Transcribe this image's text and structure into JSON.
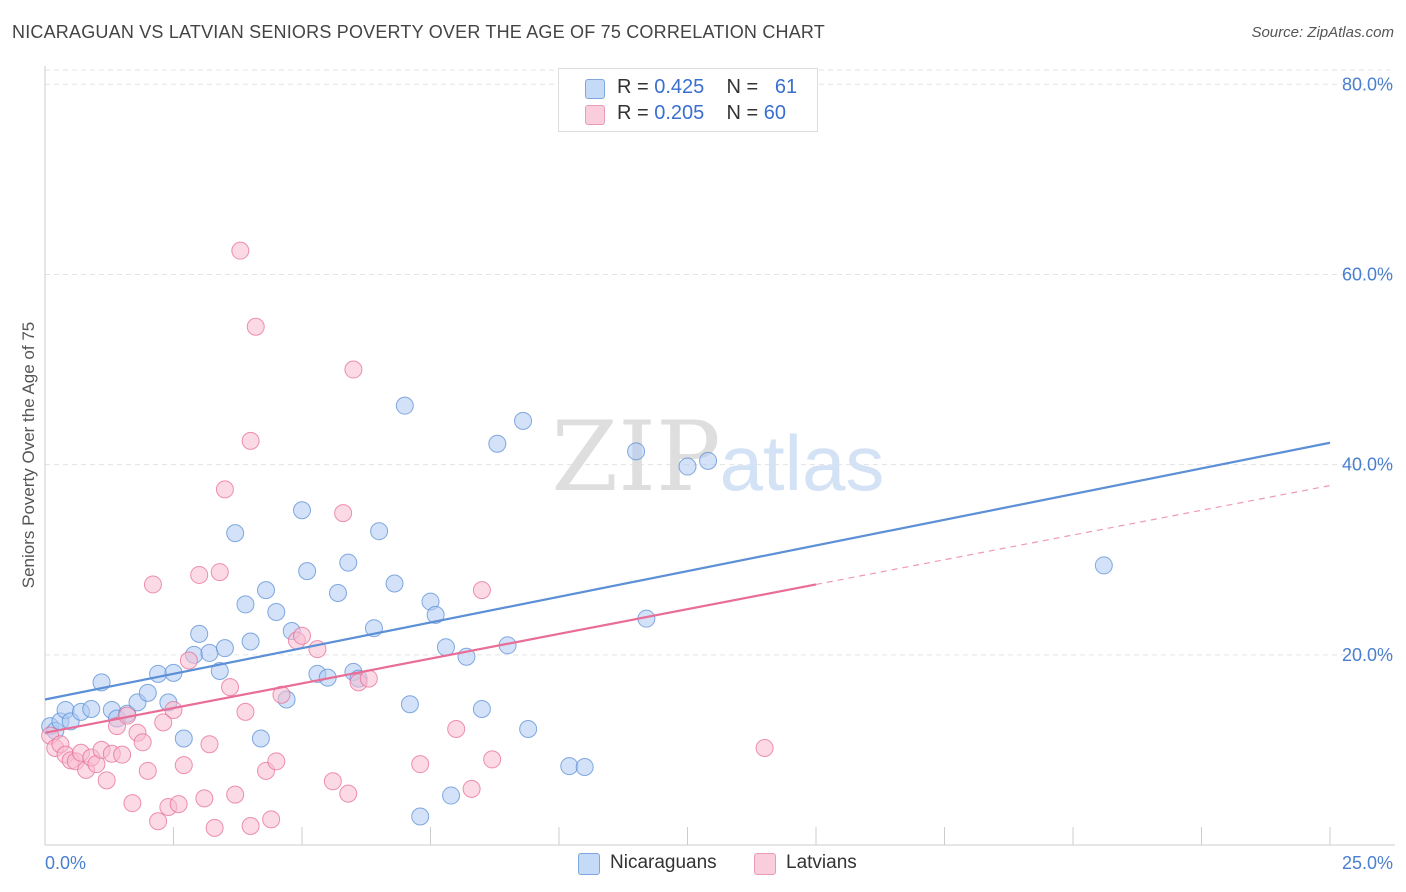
{
  "title": "NICARAGUAN VS LATVIAN SENIORS POVERTY OVER THE AGE OF 75 CORRELATION CHART",
  "source": "Source: ZipAtlas.com",
  "watermark": {
    "zip": "ZIP",
    "atlas": "atlas"
  },
  "legend": {
    "rows": [
      {
        "r_label": "R =",
        "r_value": "0.425",
        "n_label": "N =",
        "n_value": "61",
        "color": "#aecbf2"
      },
      {
        "r_label": "R =",
        "r_value": "0.205",
        "n_label": "N =",
        "n_value": "60",
        "color": "#f7bcd0"
      }
    ]
  },
  "bottom_legend": [
    {
      "label": "Nicaraguans",
      "color": "#aecbf2"
    },
    {
      "label": "Latvians",
      "color": "#f7bcd0"
    }
  ],
  "chart_data": {
    "type": "scatter",
    "title": "NICARAGUAN VS LATVIAN SENIORS POVERTY OVER THE AGE OF 75 CORRELATION CHART",
    "ylabel": "Seniors Poverty Over the Age of 75",
    "xlabel": "",
    "xlim": [
      0,
      25
    ],
    "ylim": [
      0,
      81.5
    ],
    "x_tick_labels": [
      "0.0%",
      "25.0%"
    ],
    "y_ticks": [
      20,
      40,
      60,
      80
    ],
    "y_tick_labels": [
      "20.0%",
      "40.0%",
      "60.0%",
      "80.0%"
    ],
    "grid": true,
    "series": [
      {
        "name": "Nicaraguans",
        "color": "#5b8fd6",
        "fill": "#aecbf2",
        "trend": {
          "x": [
            0,
            25
          ],
          "y": [
            15.3,
            42.3
          ],
          "dashed_from": null
        },
        "points": [
          [
            0.1,
            12.5
          ],
          [
            0.2,
            12.0
          ],
          [
            0.3,
            13.0
          ],
          [
            0.4,
            14.2
          ],
          [
            0.5,
            13.0
          ],
          [
            0.7,
            14.0
          ],
          [
            0.9,
            14.3
          ],
          [
            1.1,
            17.1
          ],
          [
            1.3,
            14.2
          ],
          [
            1.4,
            13.3
          ],
          [
            1.6,
            13.8
          ],
          [
            1.8,
            15.0
          ],
          [
            2.0,
            16.0
          ],
          [
            2.2,
            18.0
          ],
          [
            2.4,
            15.0
          ],
          [
            2.5,
            18.1
          ],
          [
            2.7,
            11.2
          ],
          [
            2.9,
            20.0
          ],
          [
            3.0,
            22.2
          ],
          [
            3.2,
            20.2
          ],
          [
            3.4,
            18.3
          ],
          [
            3.5,
            20.7
          ],
          [
            3.7,
            32.8
          ],
          [
            3.9,
            25.3
          ],
          [
            4.0,
            21.4
          ],
          [
            4.2,
            11.2
          ],
          [
            4.3,
            26.8
          ],
          [
            4.5,
            24.5
          ],
          [
            4.7,
            15.3
          ],
          [
            4.8,
            22.5
          ],
          [
            5.0,
            35.2
          ],
          [
            5.1,
            28.8
          ],
          [
            5.3,
            18.0
          ],
          [
            5.5,
            17.6
          ],
          [
            5.7,
            26.5
          ],
          [
            5.9,
            29.7
          ],
          [
            6.0,
            18.2
          ],
          [
            6.1,
            17.5
          ],
          [
            6.4,
            22.8
          ],
          [
            6.5,
            33.0
          ],
          [
            6.8,
            27.5
          ],
          [
            7.0,
            46.2
          ],
          [
            7.1,
            14.8
          ],
          [
            7.3,
            3.0
          ],
          [
            7.5,
            25.6
          ],
          [
            7.6,
            24.2
          ],
          [
            7.8,
            20.8
          ],
          [
            7.9,
            5.2
          ],
          [
            8.2,
            19.8
          ],
          [
            8.5,
            14.3
          ],
          [
            8.8,
            42.2
          ],
          [
            9.0,
            21.0
          ],
          [
            9.3,
            44.6
          ],
          [
            9.4,
            12.2
          ],
          [
            10.2,
            8.3
          ],
          [
            10.5,
            8.2
          ],
          [
            11.5,
            41.4
          ],
          [
            11.7,
            23.8
          ],
          [
            12.5,
            39.8
          ],
          [
            12.9,
            40.4
          ],
          [
            20.6,
            29.4
          ]
        ]
      },
      {
        "name": "Latvians",
        "color": "#e86d97",
        "fill": "#f7bcd0",
        "trend": {
          "x": [
            0,
            25
          ],
          "y": [
            11.8,
            37.8
          ],
          "dashed_from": 15
        },
        "points": [
          [
            0.1,
            11.5
          ],
          [
            0.2,
            10.2
          ],
          [
            0.3,
            10.6
          ],
          [
            0.4,
            9.5
          ],
          [
            0.5,
            8.9
          ],
          [
            0.6,
            8.8
          ],
          [
            0.7,
            9.7
          ],
          [
            0.8,
            7.9
          ],
          [
            0.9,
            9.2
          ],
          [
            1.0,
            8.5
          ],
          [
            1.1,
            10.0
          ],
          [
            1.2,
            6.8
          ],
          [
            1.3,
            9.6
          ],
          [
            1.4,
            12.5
          ],
          [
            1.5,
            9.5
          ],
          [
            1.6,
            13.6
          ],
          [
            1.7,
            4.4
          ],
          [
            1.8,
            11.8
          ],
          [
            1.9,
            10.8
          ],
          [
            2.0,
            7.8
          ],
          [
            2.1,
            27.4
          ],
          [
            2.2,
            2.5
          ],
          [
            2.3,
            12.9
          ],
          [
            2.4,
            4.0
          ],
          [
            2.5,
            14.2
          ],
          [
            2.6,
            4.3
          ],
          [
            2.7,
            8.4
          ],
          [
            2.8,
            19.4
          ],
          [
            3.0,
            28.4
          ],
          [
            3.1,
            4.9
          ],
          [
            3.2,
            10.6
          ],
          [
            3.3,
            1.8
          ],
          [
            3.4,
            28.7
          ],
          [
            3.5,
            37.4
          ],
          [
            3.6,
            16.6
          ],
          [
            3.7,
            5.3
          ],
          [
            3.8,
            62.5
          ],
          [
            3.9,
            14.0
          ],
          [
            4.0,
            42.5
          ],
          [
            4.1,
            54.5
          ],
          [
            4.3,
            7.8
          ],
          [
            4.4,
            2.7
          ],
          [
            4.5,
            8.8
          ],
          [
            4.6,
            15.8
          ],
          [
            4.9,
            21.5
          ],
          [
            5.0,
            22.0
          ],
          [
            5.3,
            20.6
          ],
          [
            5.6,
            6.7
          ],
          [
            5.8,
            34.9
          ],
          [
            5.9,
            5.4
          ],
          [
            6.0,
            50.0
          ],
          [
            6.1,
            17.1
          ],
          [
            6.3,
            17.5
          ],
          [
            7.3,
            8.5
          ],
          [
            8.0,
            12.2
          ],
          [
            8.3,
            5.9
          ],
          [
            8.5,
            26.8
          ],
          [
            8.7,
            9.0
          ],
          [
            14.0,
            10.2
          ],
          [
            4.0,
            2.0
          ]
        ]
      }
    ]
  }
}
